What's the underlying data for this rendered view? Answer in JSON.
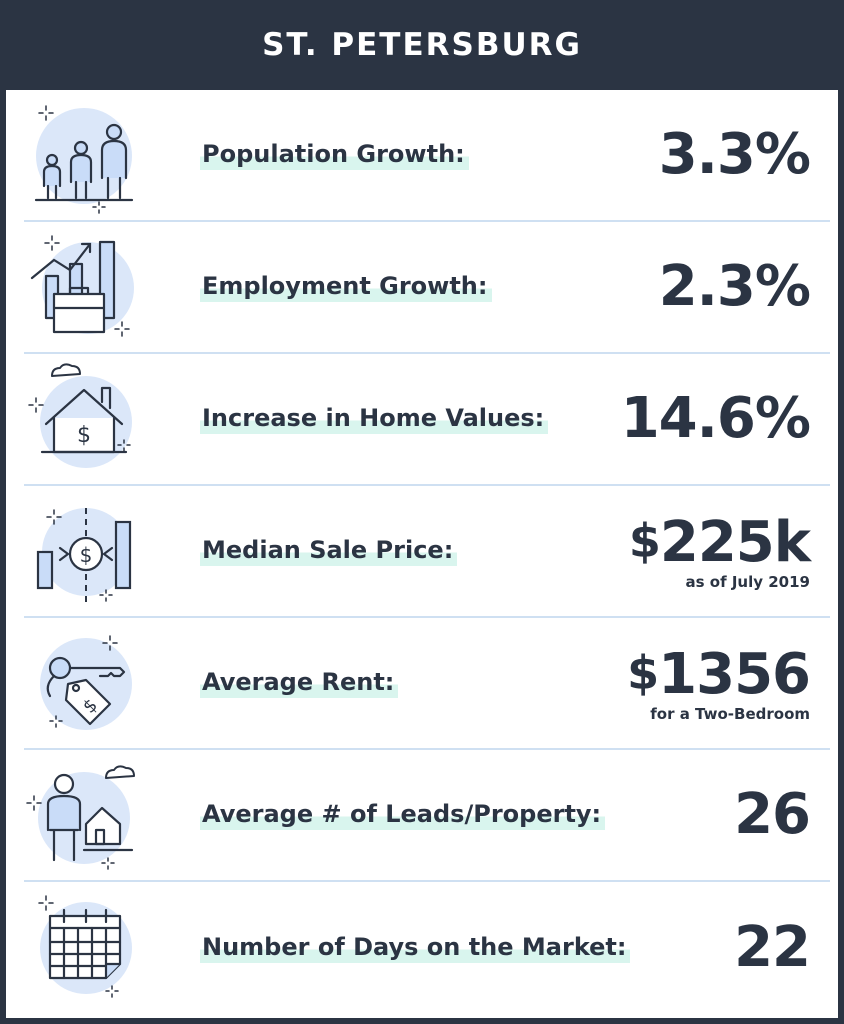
{
  "header": {
    "title": "ST. PETERSBURG"
  },
  "colors": {
    "dark": "#2b3443",
    "accent_blue": "#cfe0f2",
    "highlight": "#d9f5ee",
    "icon_fill": "#c9dcf8"
  },
  "rows": [
    {
      "icon": "people-icon",
      "label": "Population Growth:",
      "value": "3.3%",
      "note": ""
    },
    {
      "icon": "briefcase-chart-icon",
      "label": "Employment Growth:",
      "value": "2.3%",
      "note": ""
    },
    {
      "icon": "house-dollar-icon",
      "label": "Increase in Home Values:",
      "value": "14.6%",
      "note": ""
    },
    {
      "icon": "coin-bars-icon",
      "label": "Median Sale Price:",
      "value_currency": "$",
      "value": "225k",
      "note": "as of July 2019"
    },
    {
      "icon": "key-tag-icon",
      "label": "Average Rent:",
      "value_currency": "$",
      "value": "1356",
      "note": "for a Two-Bedroom"
    },
    {
      "icon": "person-house-icon",
      "label": "Average # of Leads/Property:",
      "value": "26",
      "note": ""
    },
    {
      "icon": "calendar-icon",
      "label": "Number of Days on the Market:",
      "value": "22",
      "note": ""
    }
  ]
}
